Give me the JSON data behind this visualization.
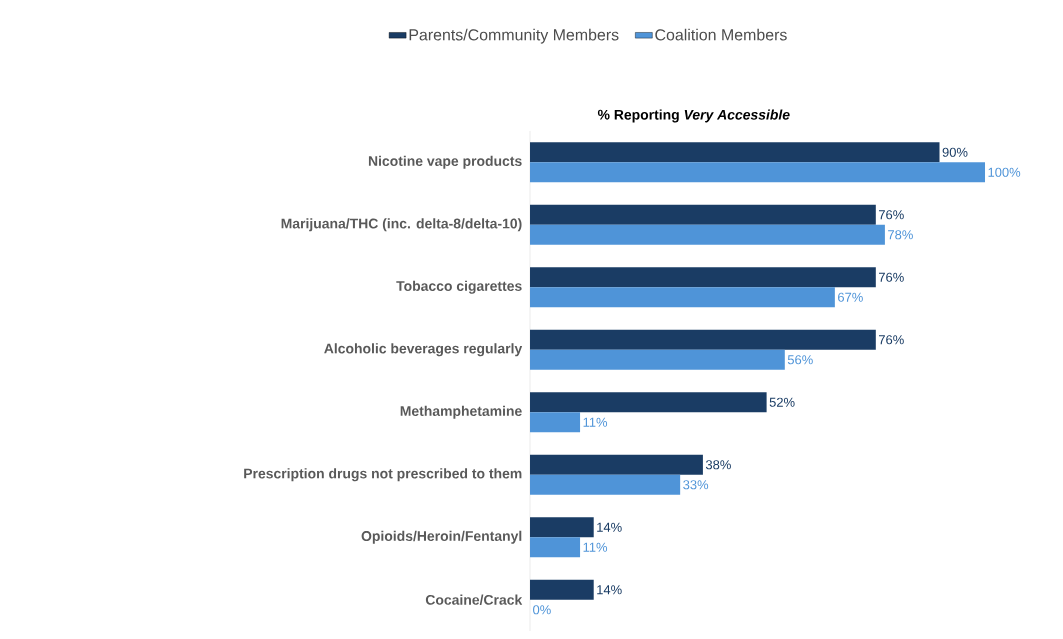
{
  "chart_data": {
    "type": "bar",
    "orientation": "horizontal",
    "title": "% Reporting *Very Accessible*",
    "categories": [
      "Nicotine vape products",
      "Marijuana/THC (inc. delta-8/delta-10)",
      "Tobacco cigarettes",
      "Alcoholic beverages regularly",
      "Methamphetamine",
      "Prescription drugs not prescribed to them",
      "Opioids/Heroin/Fentanyl",
      "Cocaine/Crack"
    ],
    "series": [
      {
        "name": "Parents/Community Members",
        "color": "#1a3c64",
        "values": [
          90,
          76,
          76,
          76,
          52,
          38,
          14,
          14
        ],
        "value_labels": [
          "90%",
          "76%",
          "76%",
          "76%",
          "52%",
          "38%",
          "14%",
          "14%"
        ]
      },
      {
        "name": "Coalition Members",
        "color": "#4f94d8",
        "values": [
          100,
          78,
          67,
          56,
          11,
          33,
          11,
          0
        ],
        "value_labels": [
          "100%",
          "78%",
          "67%",
          "56%",
          "11%",
          "33%",
          "11%",
          "0%"
        ]
      }
    ],
    "xlim": [
      0,
      100
    ],
    "legend": "top"
  }
}
